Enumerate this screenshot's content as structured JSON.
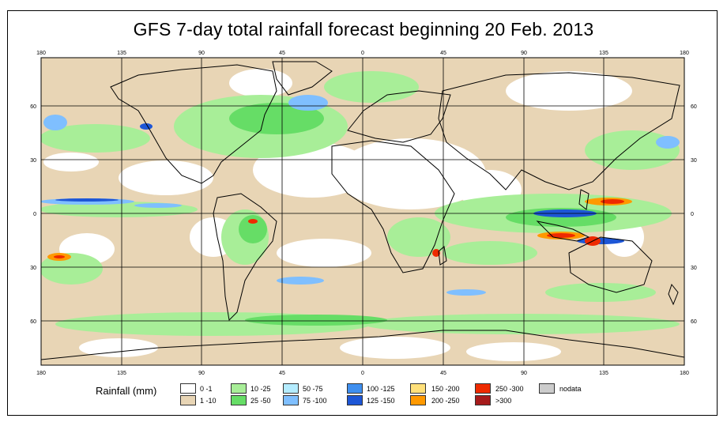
{
  "title": "GFS 7-day total rainfall forecast beginning 20 Feb. 2013",
  "axes": {
    "lon_labels": [
      "180",
      "135",
      "90",
      "45",
      "0",
      "45",
      "90",
      "135",
      "180"
    ],
    "lat_labels": [
      "60",
      "30",
      "0",
      "30",
      "60"
    ]
  },
  "legend": {
    "title": "Rainfall (mm)",
    "items": [
      {
        "label": "0 -1",
        "color": "#ffffff"
      },
      {
        "label": "1 -10",
        "color": "#e8d5b5"
      },
      {
        "label": "10 -25",
        "color": "#a8ee98"
      },
      {
        "label": "25 -50",
        "color": "#66dd66"
      },
      {
        "label": "50 -75",
        "color": "#b4ecff"
      },
      {
        "label": "75 -100",
        "color": "#7fbfff"
      },
      {
        "label": "100 -125",
        "color": "#3f8fef"
      },
      {
        "label": "125 -150",
        "color": "#1d56d6"
      },
      {
        "label": "150 -200",
        "color": "#ffe07a"
      },
      {
        "label": "200 -250",
        "color": "#ff9900"
      },
      {
        "label": "250 -300",
        "color": "#ee2a00"
      },
      {
        "label": ">300",
        "color": "#a61b1b"
      },
      {
        "label": "nodata",
        "color": "#cccccc"
      }
    ]
  }
}
